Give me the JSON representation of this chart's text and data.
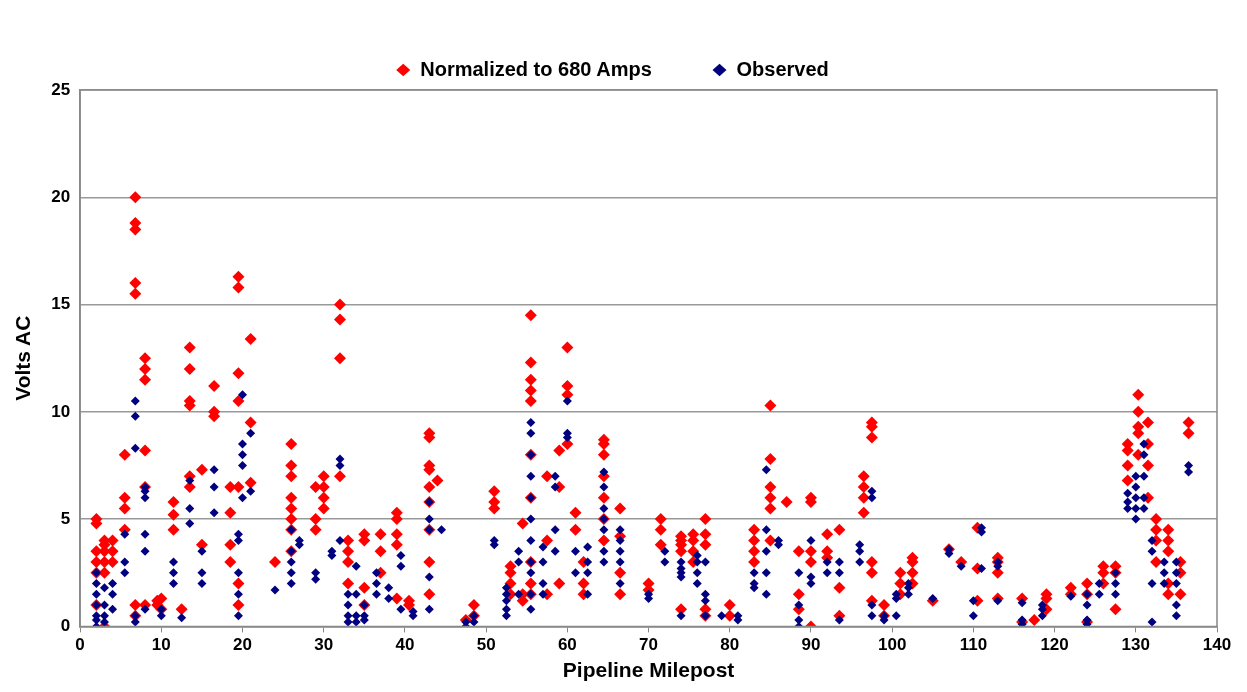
{
  "chart_data": {
    "type": "scatter",
    "xlabel": "Pipeline Milepost",
    "ylabel": "Volts AC",
    "xlim": [
      0,
      140
    ],
    "xticks": [
      0,
      10,
      20,
      30,
      40,
      50,
      60,
      70,
      80,
      90,
      100,
      110,
      120,
      130,
      140
    ],
    "ylim": [
      0,
      25
    ],
    "yticks": [
      0,
      5,
      10,
      15,
      20,
      25
    ],
    "grid": "y",
    "legend": "top",
    "marker": "diamond",
    "series": [
      {
        "name": "Normalized to 680 Amps",
        "color": "#ff0000",
        "x": [
          2,
          2,
          2,
          2,
          2,
          2,
          3,
          3,
          3,
          3,
          3,
          3,
          4,
          4,
          4,
          5.5,
          5.5,
          5.5,
          5.5,
          6.8,
          6.8,
          6.8,
          6.8,
          6.8,
          6.8,
          6.8,
          8,
          8,
          8,
          8,
          8,
          8,
          9.5,
          9.5,
          10,
          10,
          11.5,
          11.5,
          11.5,
          12.5,
          13.5,
          13.5,
          13.5,
          13.5,
          13.5,
          13.5,
          15,
          15,
          16.5,
          16.5,
          16.5,
          18.5,
          18.5,
          18.5,
          18.5,
          19.5,
          19.5,
          19.5,
          19.5,
          19.5,
          19.5,
          19.5,
          21,
          21,
          21,
          24,
          26,
          26,
          26,
          26,
          26,
          26,
          26,
          26,
          29,
          29,
          29,
          30,
          30,
          30,
          30,
          32,
          32,
          32,
          32,
          33,
          33,
          33,
          33,
          35,
          35,
          35,
          35,
          37,
          37,
          37,
          39,
          39,
          39,
          39,
          39,
          40.5,
          40.5,
          43,
          43,
          43,
          43,
          43,
          43,
          43,
          43,
          43,
          44,
          47.5,
          48.5,
          48.5,
          51,
          51,
          51,
          53,
          53,
          53,
          53,
          54.5,
          54.5,
          54.5,
          55.5,
          55.5,
          55.5,
          55.5,
          55.5,
          55.5,
          55.5,
          55.5,
          55.5,
          55.5,
          57.5,
          57.5,
          57.5,
          59,
          59,
          59,
          60,
          60,
          60,
          60,
          61,
          61,
          62,
          62,
          62,
          64.5,
          64.5,
          64.5,
          64.5,
          64.5,
          64.5,
          64.5,
          66.5,
          66.5,
          66.5,
          66.5,
          70,
          70,
          71.5,
          71.5,
          71.5,
          74,
          74,
          74,
          74,
          74,
          75.5,
          75.5,
          75.5,
          75.5,
          77,
          77,
          77,
          77,
          77,
          80,
          80,
          83,
          83,
          83,
          83,
          85,
          85,
          85,
          85,
          85,
          85,
          87,
          88.5,
          88.5,
          88.5,
          90,
          90,
          90,
          90,
          90,
          92,
          92,
          92,
          93.5,
          93.5,
          93.5,
          96.5,
          96.5,
          96.5,
          96.5,
          97.5,
          97.5,
          97.5,
          97.5,
          97.5,
          97.5,
          99,
          99,
          101,
          101,
          101,
          102.5,
          102.5,
          102.5,
          102.5,
          105,
          107,
          108.5,
          110.5,
          110.5,
          110.5,
          113,
          113,
          113,
          113,
          116,
          116,
          117.5,
          119,
          119,
          119,
          122,
          122,
          124,
          124,
          124,
          126,
          126,
          126,
          127.5,
          127.5,
          127.5,
          129,
          129,
          129,
          129,
          130.3,
          130.3,
          130.3,
          130.3,
          130.3,
          131.5,
          131.5,
          131.5,
          131.5,
          132.5,
          132.5,
          132.5,
          132.5,
          134,
          134,
          134,
          134,
          134,
          135.5,
          135.5,
          135.5,
          136.5,
          136.5
        ],
        "values": [
          5,
          4.8,
          3.5,
          3,
          2.5,
          1,
          4,
          3.8,
          3.5,
          3,
          2.5,
          0,
          4,
          3.5,
          3,
          8,
          6,
          5.5,
          4.5,
          20,
          18.8,
          18.5,
          16,
          15.5,
          1,
          0.5,
          12.5,
          12,
          11.5,
          8.2,
          6.5,
          1,
          1.2,
          1,
          1.3,
          0.8,
          5.8,
          5.2,
          4.5,
          0.8,
          13,
          12,
          10.5,
          10.3,
          7,
          6.5,
          7.3,
          3.8,
          11.2,
          10,
          9.8,
          6.5,
          5.3,
          3.8,
          3,
          16.3,
          15.8,
          11.8,
          10.5,
          6.5,
          2,
          1,
          13.4,
          9.5,
          6.7,
          3,
          8.5,
          7.5,
          7,
          6,
          5.5,
          5,
          4.5,
          3.5,
          6.5,
          5,
          4.5,
          7,
          6.5,
          6,
          5.5,
          15,
          14.3,
          12.5,
          7,
          4,
          3.5,
          3,
          2,
          4.3,
          4,
          1.8,
          1,
          4.3,
          3.5,
          2.5,
          5.3,
          5,
          4.3,
          3.8,
          1.3,
          1.2,
          1,
          9,
          8.8,
          7.5,
          7.3,
          6.5,
          5.8,
          4.5,
          3,
          1.5,
          6.8,
          0.3,
          1,
          0.5,
          6.3,
          5.8,
          5.5,
          2.8,
          2.5,
          2,
          1.5,
          4.8,
          1.5,
          1.2,
          14.5,
          12.3,
          11.5,
          11,
          10.5,
          8,
          6,
          3,
          2,
          1.5,
          7,
          4,
          1.5,
          8.2,
          6.5,
          2,
          13,
          11.2,
          10.8,
          8.5,
          5.3,
          4.5,
          3,
          2,
          1.5,
          8.7,
          8.5,
          8,
          7,
          6,
          5,
          4,
          5.5,
          4.2,
          2.5,
          1.5,
          2,
          1.7,
          5,
          4.5,
          3.8,
          4.2,
          4,
          3.8,
          3.5,
          0.8,
          4.3,
          4,
          3.5,
          3,
          5,
          4.3,
          3.8,
          0.8,
          0.5,
          1,
          0.5,
          4.5,
          4,
          3.5,
          3,
          10.3,
          7.8,
          6.5,
          6,
          5.5,
          4,
          5.8,
          3.5,
          1.5,
          0.8,
          6,
          5.8,
          3.5,
          3,
          0,
          4.3,
          3.5,
          3.2,
          4.5,
          1.8,
          0.5,
          7,
          6.5,
          6,
          5.3,
          9.5,
          9.3,
          8.8,
          3,
          2.5,
          1.2,
          1,
          0.5,
          2.5,
          2,
          1.5,
          3.2,
          3,
          2.5,
          2,
          1.2,
          3.6,
          3,
          4.6,
          2.7,
          1.2,
          3.2,
          3,
          2.5,
          1.3,
          1.3,
          0.2,
          0.3,
          1.5,
          1.3,
          0.8,
          1.8,
          1.5,
          2,
          1.5,
          0.2,
          2.8,
          2.5,
          2,
          2.8,
          2.5,
          0.8,
          8.5,
          8.2,
          7.5,
          6.8,
          10.8,
          10,
          9.3,
          9,
          8,
          9.5,
          8.5,
          7.5,
          6,
          5,
          4.5,
          4,
          3,
          4.5,
          4,
          3.5,
          2,
          1.5,
          3,
          2.5,
          1.5,
          9.5,
          9
        ]
      },
      {
        "name": "Observed",
        "color": "#000080",
        "x": [
          2,
          2,
          2,
          2,
          2,
          2,
          2,
          3,
          3,
          3,
          3,
          4,
          4,
          4,
          5.5,
          5.5,
          5.5,
          6.8,
          6.8,
          6.8,
          6.8,
          6.8,
          8,
          8,
          8,
          8,
          8,
          8,
          10,
          10,
          11.5,
          11.5,
          11.5,
          12.5,
          13.5,
          13.5,
          13.5,
          15,
          15,
          15,
          16.5,
          16.5,
          16.5,
          19.5,
          19.5,
          19.5,
          19.5,
          19.5,
          20,
          20,
          20,
          20,
          20,
          21,
          21,
          24,
          26,
          26,
          26,
          26,
          26,
          27,
          27,
          29,
          29,
          31,
          31,
          32,
          32,
          32,
          33,
          33,
          33,
          33,
          34,
          34,
          34,
          34,
          35,
          35,
          35,
          36.5,
          36.5,
          36.5,
          38,
          38,
          39.5,
          39.5,
          39.5,
          41,
          41,
          43,
          43,
          43,
          43,
          43,
          44.5,
          47.5,
          47.5,
          48.5,
          48.5,
          51,
          51,
          52.5,
          52.5,
          52.5,
          52.5,
          52.5,
          54,
          54,
          54,
          55.5,
          55.5,
          55.5,
          55.5,
          55.5,
          55.5,
          55.5,
          55.5,
          55.5,
          55.5,
          55.5,
          57,
          57,
          57,
          57,
          58.5,
          58.5,
          58.5,
          58.5,
          60,
          60,
          60,
          61,
          61,
          62.5,
          62.5,
          62.5,
          62.5,
          64.5,
          64.5,
          64.5,
          64.5,
          64.5,
          64.5,
          64.5,
          66.5,
          66.5,
          66.5,
          66.5,
          66.5,
          70,
          70,
          72,
          72,
          74,
          74,
          74,
          74,
          74,
          76,
          76,
          76,
          76,
          77,
          77,
          77,
          77,
          79,
          81,
          81,
          83,
          83,
          83,
          84.5,
          84.5,
          84.5,
          84.5,
          84.5,
          86,
          86,
          88.5,
          88.5,
          88.5,
          88.5,
          90,
          90,
          90,
          92,
          92,
          93.5,
          93.5,
          93.5,
          96,
          96,
          96,
          97.5,
          97.5,
          97.5,
          97.5,
          99,
          99,
          100.5,
          100.5,
          100.5,
          102,
          102,
          102,
          105,
          107,
          107,
          108.5,
          110,
          110,
          111,
          111,
          111,
          113,
          113,
          113,
          116,
          116,
          116,
          118.5,
          118.5,
          118.5,
          122,
          124,
          124,
          124,
          124,
          125.5,
          125.5,
          127.5,
          127.5,
          127.5,
          129,
          129,
          129,
          130,
          130,
          130,
          130,
          130,
          131,
          131,
          131,
          131,
          131,
          132,
          132,
          132,
          132,
          133.5,
          133.5,
          133.5,
          135,
          135,
          135,
          135,
          135,
          136.5,
          136.5
        ],
        "values": [
          2.5,
          2,
          1.5,
          1,
          0.5,
          0.3,
          0,
          1.8,
          1,
          0.5,
          0.2,
          2,
          1.5,
          0.8,
          4.3,
          3,
          2.5,
          10.5,
          9.8,
          8.3,
          0.5,
          0.2,
          6.5,
          6.3,
          6,
          4.3,
          3.5,
          0.8,
          0.8,
          0.5,
          3,
          2.5,
          2,
          0.4,
          6.8,
          5.5,
          4.8,
          3.5,
          2.5,
          2,
          7.3,
          6.5,
          5.3,
          4.3,
          4,
          2.5,
          1.5,
          0.5,
          10.8,
          8.5,
          8,
          7.5,
          6,
          9,
          6.3,
          1.7,
          4.5,
          3.5,
          3,
          2.5,
          2,
          4,
          3.8,
          2.5,
          2.2,
          3.5,
          3.3,
          7.8,
          7.5,
          4,
          1.5,
          1,
          0.5,
          0.2,
          2.8,
          1.5,
          0.5,
          0.2,
          1,
          0.5,
          0.3,
          2.5,
          2,
          1.5,
          1.8,
          1.3,
          3.3,
          2.8,
          0.8,
          0.7,
          0.5,
          5.8,
          5,
          4.5,
          2.3,
          0.8,
          4.5,
          0.2,
          0,
          0.5,
          0.2,
          4,
          3.8,
          1.8,
          1.5,
          1.2,
          0.8,
          0.5,
          3.5,
          3,
          1.5,
          9.5,
          9,
          8,
          7,
          6,
          5,
          4,
          3,
          2.5,
          1.5,
          0.8,
          3.7,
          3,
          2,
          1.5,
          7,
          6.5,
          4.5,
          3.5,
          10.5,
          9,
          8.8,
          3.5,
          2.5,
          3.7,
          3,
          2.5,
          1.5,
          7.2,
          6.5,
          5.5,
          5,
          4.5,
          3.5,
          3,
          4.5,
          4,
          3.5,
          3,
          2,
          1.5,
          1.3,
          3.5,
          3,
          3,
          2.7,
          2.5,
          2.3,
          0.5,
          3.3,
          3,
          2.5,
          2,
          3,
          1.5,
          1.2,
          0.5,
          0.5,
          0.5,
          0.3,
          2.5,
          2,
          1.8,
          7.3,
          4.5,
          3.5,
          2.5,
          1.5,
          4,
          3.8,
          2.5,
          1,
          0.3,
          0,
          4,
          2.3,
          2,
          3,
          2.5,
          3,
          2.5,
          0.3,
          3.8,
          3.5,
          3,
          6.3,
          6,
          1,
          0.5,
          0.5,
          0.3,
          1.5,
          1.3,
          0.5,
          2,
          1.8,
          1.5,
          1.3,
          3.6,
          3.4,
          2.8,
          1.2,
          0.5,
          4.6,
          4.4,
          2.7,
          3,
          2.8,
          1.2,
          1.1,
          0.3,
          0.1,
          1,
          0.8,
          0.5,
          1.4,
          1.5,
          1,
          0.3,
          0.1,
          2,
          1.5,
          2.5,
          2,
          1.5,
          6.2,
          5.8,
          5.5,
          7,
          6.5,
          6,
          5.5,
          5,
          8.5,
          8,
          7,
          6,
          5.5,
          4,
          3.5,
          2,
          0.2,
          3,
          2.5,
          2,
          3,
          2.5,
          2,
          1,
          0.5,
          7.5,
          7.2
        ]
      }
    ]
  }
}
